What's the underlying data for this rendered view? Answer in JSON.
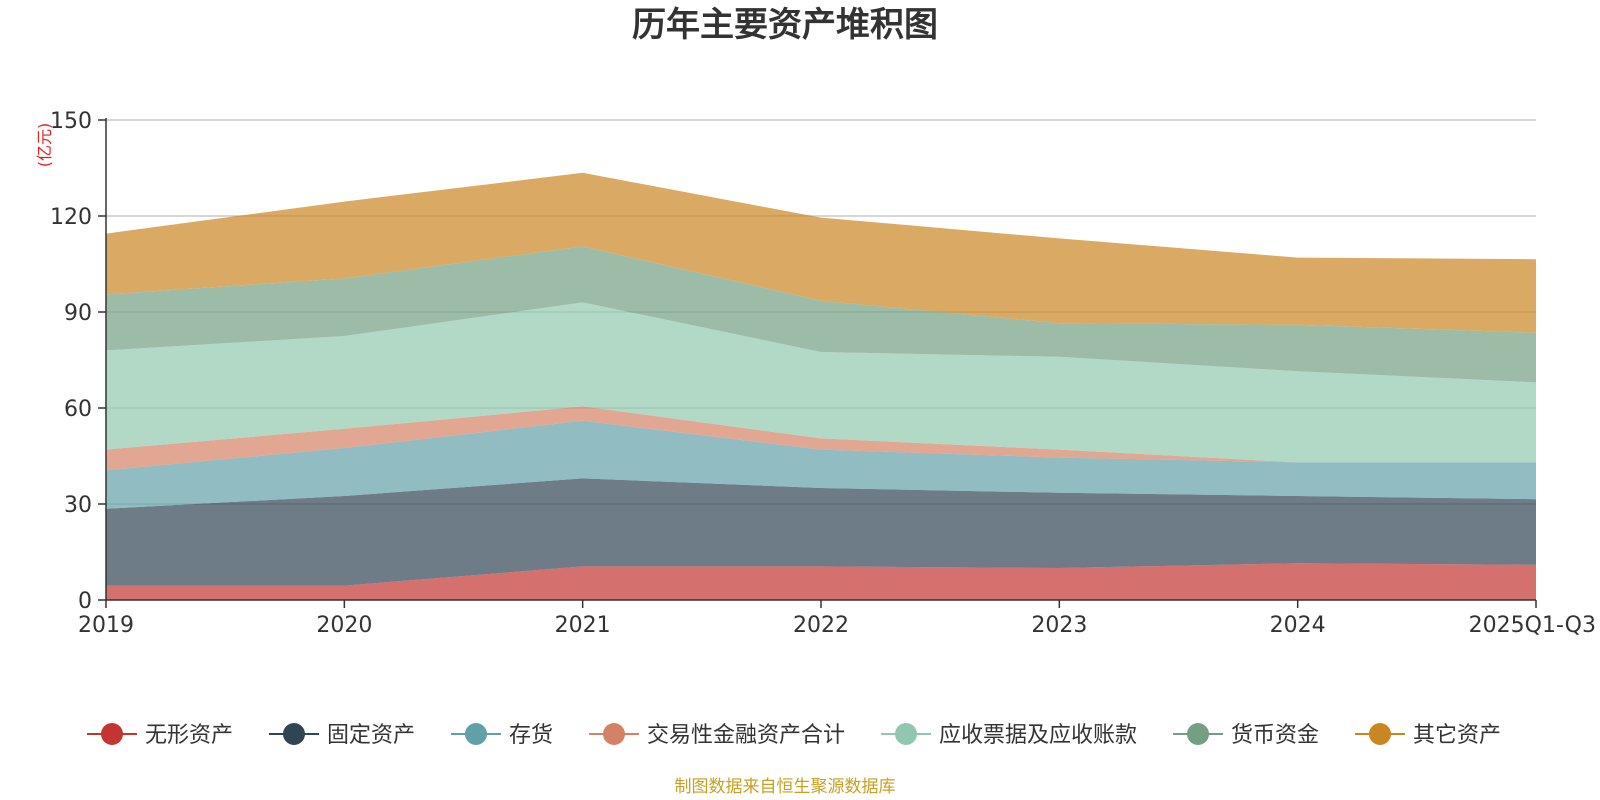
{
  "chart_data": {
    "type": "area",
    "stacked": true,
    "title": "历年主要资产堆积图",
    "unit": "(亿元)",
    "categories": [
      "2019",
      "2020",
      "2021",
      "2022",
      "2023",
      "2024",
      "2025Q1-Q3"
    ],
    "yticks": [
      "0",
      "30",
      "60",
      "90",
      "120",
      "150"
    ],
    "ylim": [
      0,
      150
    ],
    "grid": true,
    "legend_position": "bottom",
    "series": [
      {
        "name": "无形资产",
        "color": "#c23531",
        "values": [
          4.5,
          4.5,
          10.5,
          10.5,
          10,
          11.5,
          11
        ]
      },
      {
        "name": "固定资产",
        "color": "#2f4554",
        "values": [
          24,
          28,
          27.5,
          24.5,
          23.5,
          21,
          20.5
        ]
      },
      {
        "name": "存货",
        "color": "#61a0a8",
        "values": [
          12,
          15,
          18,
          12,
          11,
          10.5,
          11.5
        ]
      },
      {
        "name": "交易性金融资产合计",
        "color": "#d48265",
        "values": [
          6.5,
          6,
          4.5,
          3.5,
          2.5,
          0,
          0
        ]
      },
      {
        "name": "应收票据及应收账款",
        "color": "#91c7ae",
        "values": [
          31,
          29,
          32.5,
          27,
          29,
          28.5,
          25
        ]
      },
      {
        "name": "货币资金",
        "color": "#749f83",
        "values": [
          17.5,
          18,
          17.5,
          16,
          10.5,
          14.5,
          15.5
        ]
      },
      {
        "name": "其它资产",
        "color": "#ca8622",
        "values": [
          19,
          24,
          23,
          26,
          26.5,
          21,
          23
        ]
      }
    ],
    "source": "制图数据来自恒生聚源数据库",
    "source_color": "#c8a020"
  }
}
